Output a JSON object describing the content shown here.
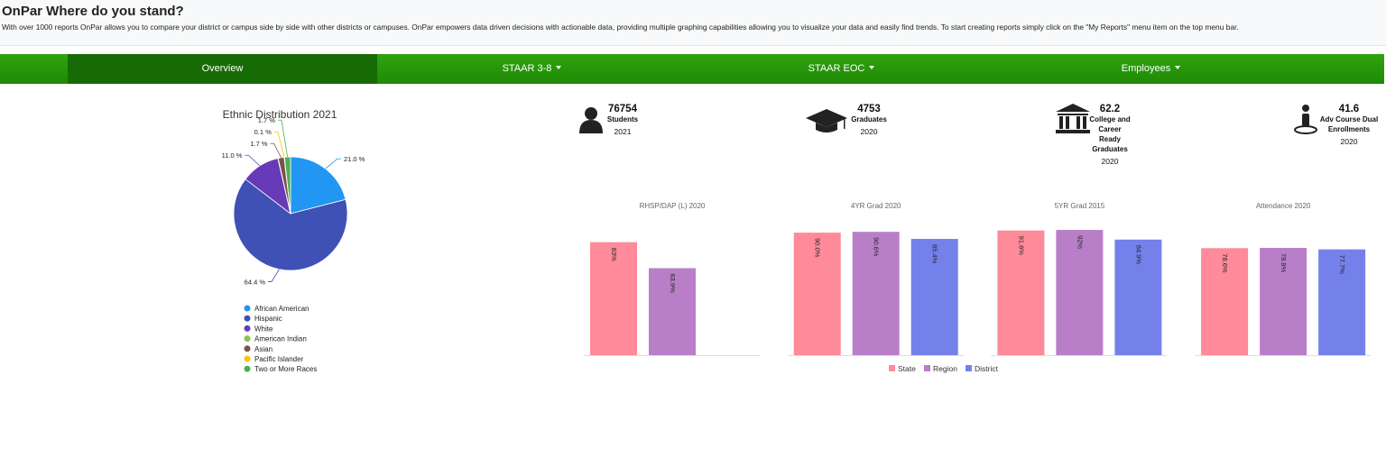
{
  "header": {
    "title": "OnPar Where do you stand?",
    "description": "With over 1000 reports OnPar allows you to compare your district or campus side by side with other districts or campuses. OnPar empowers data driven decisions with actionable data, providing multiple graphing capabilities allowing you to visualize your data and easily find trends. To start creating reports simply click on the \"My Reports\" menu item on the top menu bar."
  },
  "nav": [
    "Overview",
    "STAAR 3-8",
    "STAAR EOC",
    "Employees"
  ],
  "stats": [
    {
      "value": 76754,
      "label": "Students",
      "year": "2021"
    },
    {
      "value": 4753,
      "label": "Graduates",
      "year": "2020"
    },
    {
      "value": 62.2,
      "label": "College and Career Ready Graduates",
      "year": "2020"
    },
    {
      "value": 41.6,
      "label": "Adv Course Dual Enrollments",
      "year": "2020"
    }
  ],
  "chart_data": [
    {
      "type": "pie",
      "title": "Ethnic Distribution 2021",
      "categories": [
        "African American",
        "Hispanic",
        "White",
        "American Indian",
        "Asian",
        "Pacific Islander",
        "Two or More Races"
      ],
      "values": [
        21.0,
        64.4,
        11.0,
        0.1,
        1.7,
        0.1,
        1.7
      ],
      "value_labels": [
        "21.0 %",
        "64.4 %",
        "11.0 %",
        null,
        "1.7 %",
        "0.1 %",
        "1.7 %"
      ],
      "colors": [
        "#2196f3",
        "#3f51b5",
        "#673ab7",
        "#8bc34a",
        "#795548",
        "#ffc107",
        "#4caf50"
      ]
    },
    {
      "type": "bar",
      "title": "RHSP/DAP (L) 2020",
      "categories": [
        "State",
        "Region",
        "District"
      ],
      "values": [
        83,
        63.9,
        null
      ],
      "value_labels": [
        "83%",
        "63.9%",
        null
      ],
      "colors": [
        "#ff8a9a",
        "#b87fc8",
        "#7581ea"
      ],
      "ylim": [
        0,
        100
      ]
    },
    {
      "type": "bar",
      "title": "4YR Grad 2020",
      "categories": [
        "State",
        "Region",
        "District"
      ],
      "values": [
        90.0,
        90.6,
        85.4
      ],
      "value_labels": [
        "90.0%",
        "90.6%",
        "85.4%"
      ],
      "colors": [
        "#ff8a9a",
        "#b87fc8",
        "#7581ea"
      ],
      "ylim": [
        0,
        100
      ]
    },
    {
      "type": "bar",
      "title": "5YR Grad 2015",
      "categories": [
        "State",
        "Region",
        "District"
      ],
      "values": [
        91.6,
        92,
        84.9
      ],
      "value_labels": [
        "91.6%",
        "92%",
        "84.9%"
      ],
      "colors": [
        "#ff8a9a",
        "#b87fc8",
        "#7581ea"
      ],
      "ylim": [
        0,
        100
      ]
    },
    {
      "type": "bar",
      "title": "Attendance 2020",
      "categories": [
        "State",
        "Region",
        "District"
      ],
      "values": [
        78.6,
        78.8,
        77.7
      ],
      "value_labels": [
        "78.6%",
        "78.8%",
        "77.7%"
      ],
      "colors": [
        "#ff8a9a",
        "#b87fc8",
        "#7581ea"
      ],
      "ylim": [
        0,
        100
      ]
    }
  ]
}
